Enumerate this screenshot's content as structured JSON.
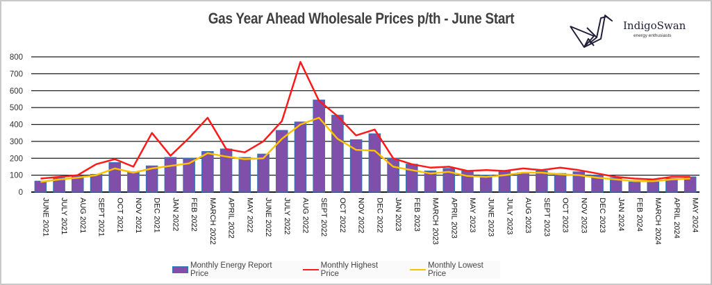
{
  "logo": {
    "name": "IndigoSwan",
    "tagline": "energy enthusiasts"
  },
  "colors": {
    "bar": "#7f4fa9",
    "bar_edge": "#2e75b6",
    "high": "#ff1a1a",
    "low": "#ffc000",
    "grid": "#1a1a1a"
  },
  "chart_data": {
    "type": "bar",
    "title": "Gas Year Ahead Wholesale Prices p/th - June Start",
    "xlabel": "",
    "ylabel": "",
    "ylim": [
      0,
      800
    ],
    "yticks": [
      0,
      100,
      200,
      300,
      400,
      500,
      600,
      700,
      800
    ],
    "grid": true,
    "legend_position": "bottom",
    "categories": [
      "JUNE 2021",
      "JULY 2021",
      "AUG 2021",
      "SEPT 2021",
      "OCT 2021",
      "NOV 2021",
      "DEC 2021",
      "JAN 2022",
      "FEB 2022",
      "MARCH 2022",
      "APRIL 2022",
      "MAY 2022",
      "JUNE 2022",
      "JULY 2022",
      "AUG 2022",
      "SEPT 2022",
      "OCT 2022",
      "NOV 2022",
      "DEC 2022",
      "JAN 2023",
      "FEB 2023",
      "MARCH 2023",
      "APRIL 2023",
      "MAY 2023",
      "JUNE 2023",
      "JULY 2023",
      "AUG 2023",
      "SEPT 2023",
      "OCT 2023",
      "NOV 2023",
      "DEC 2023",
      "JAN 2024",
      "FEB 2024",
      "MARCH 2024",
      "APRIL 2024",
      "MAY 2024"
    ],
    "series": [
      {
        "name": "Monthly Energy Report Price",
        "type": "bar",
        "values": [
          65,
          85,
          95,
          105,
          175,
          120,
          155,
          205,
          200,
          240,
          255,
          205,
          225,
          365,
          415,
          545,
          455,
          310,
          345,
          200,
          165,
          125,
          140,
          125,
          100,
          125,
          115,
          125,
          110,
          120,
          100,
          85,
          60,
          70,
          80,
          90
        ]
      },
      {
        "name": "Monthly Highest Price",
        "type": "line",
        "values": [
          80,
          90,
          100,
          165,
          195,
          150,
          350,
          215,
          320,
          440,
          255,
          235,
          300,
          420,
          770,
          540,
          450,
          335,
          370,
          200,
          165,
          145,
          150,
          125,
          130,
          125,
          140,
          130,
          145,
          130,
          110,
          90,
          80,
          75,
          90,
          90
        ]
      },
      {
        "name": "Monthly Lowest Price",
        "type": "line",
        "values": [
          60,
          75,
          85,
          100,
          140,
          115,
          140,
          155,
          170,
          230,
          210,
          195,
          200,
          315,
          400,
          440,
          315,
          250,
          245,
          150,
          130,
          110,
          120,
          95,
          90,
          100,
          115,
          115,
          105,
          100,
          85,
          75,
          65,
          65,
          75,
          80
        ]
      }
    ]
  }
}
